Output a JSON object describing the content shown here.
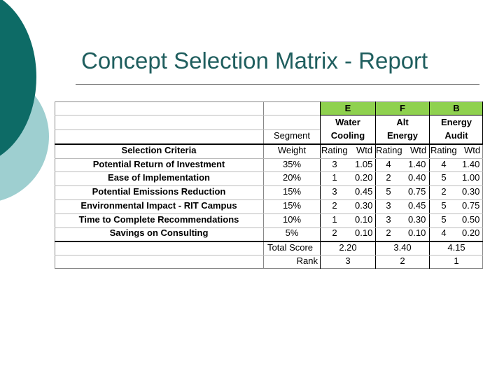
{
  "slide": {
    "title": "Concept Selection Matrix - Report",
    "accent_color": "#0d6b66",
    "secondary_color": "#9ecfd0",
    "header_fill_color": "#8fd14f"
  },
  "matrix": {
    "concepts": [
      {
        "code": "E",
        "name1": "Water",
        "name2": "Cooling",
        "total_score": "2.20",
        "rank": "3"
      },
      {
        "code": "F",
        "name1": "Alt",
        "name2": "Energy",
        "total_score": "3.40",
        "rank": "2"
      },
      {
        "code": "B",
        "name1": "Energy",
        "name2": "Audit",
        "total_score": "4.15",
        "rank": "1"
      }
    ],
    "segment_label": "Segment",
    "criteria_header": "Selection Criteria",
    "weight_header": "Weight",
    "rating_label": "Rating",
    "wtd_label": "Wtd",
    "total_score_label": "Total Score",
    "rank_label": "Rank",
    "rows": [
      {
        "criterion": "Potential Return of Investment",
        "weight": "35%",
        "e_rating": "3",
        "e_wtd": "1.05",
        "f_rating": "4",
        "f_wtd": "1.40",
        "b_rating": "4",
        "b_wtd": "1.40"
      },
      {
        "criterion": "Ease of Implementation",
        "weight": "20%",
        "e_rating": "1",
        "e_wtd": "0.20",
        "f_rating": "2",
        "f_wtd": "0.40",
        "b_rating": "5",
        "b_wtd": "1.00"
      },
      {
        "criterion": "Potential Emissions Reduction",
        "weight": "15%",
        "e_rating": "3",
        "e_wtd": "0.45",
        "f_rating": "5",
        "f_wtd": "0.75",
        "b_rating": "2",
        "b_wtd": "0.30"
      },
      {
        "criterion": "Environmental Impact - RIT Campus",
        "weight": "15%",
        "e_rating": "2",
        "e_wtd": "0.30",
        "f_rating": "3",
        "f_wtd": "0.45",
        "b_rating": "5",
        "b_wtd": "0.75"
      },
      {
        "criterion": "Time to Complete Recommendations",
        "weight": "10%",
        "e_rating": "1",
        "e_wtd": "0.10",
        "f_rating": "3",
        "f_wtd": "0.30",
        "b_rating": "5",
        "b_wtd": "0.50"
      },
      {
        "criterion": "Savings on Consulting",
        "weight": "5%",
        "e_rating": "2",
        "e_wtd": "0.10",
        "f_rating": "2",
        "f_wtd": "0.10",
        "b_rating": "4",
        "b_wtd": "0.20"
      }
    ]
  }
}
